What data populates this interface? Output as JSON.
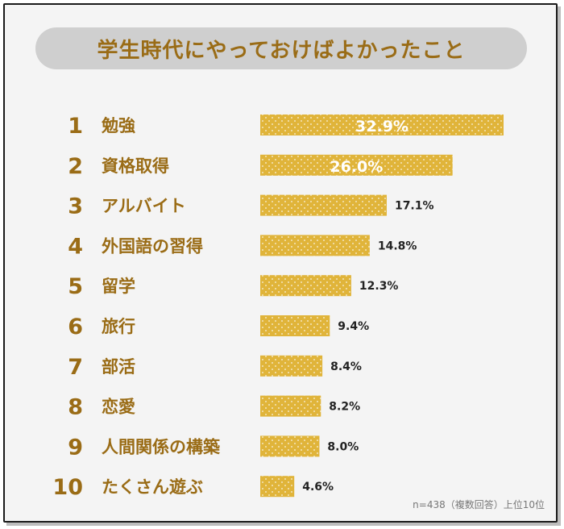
{
  "title": "学生時代にやっておけばよかったこと",
  "footnote": "n=438（複数回答）上位10位",
  "colors": {
    "bar": "#e0b43a",
    "rank_text": "#9a6c16",
    "label_text": "#9a6c16",
    "value_text": "#222222",
    "value_text_on_bar": "#ffffff"
  },
  "chart_data": {
    "type": "bar",
    "orientation": "horizontal",
    "title": "学生時代にやっておけばよかったこと",
    "ranks": [
      "1",
      "2",
      "3",
      "4",
      "5",
      "6",
      "7",
      "8",
      "9",
      "10"
    ],
    "categories": [
      "勉強",
      "資格取得",
      "アルバイト",
      "外国語の習得",
      "留学",
      "旅行",
      "部活",
      "恋愛",
      "人間関係の構築",
      "たくさん遊ぶ"
    ],
    "values": [
      32.9,
      26.0,
      17.1,
      14.8,
      12.3,
      9.4,
      8.4,
      8.2,
      8.0,
      4.6
    ],
    "value_labels": [
      "32.9%",
      "26.0%",
      "17.1%",
      "14.8%",
      "12.3%",
      "9.4%",
      "8.4%",
      "8.2%",
      "8.0%",
      "4.6%"
    ],
    "unit": "%",
    "grid": false,
    "legend": "none"
  }
}
